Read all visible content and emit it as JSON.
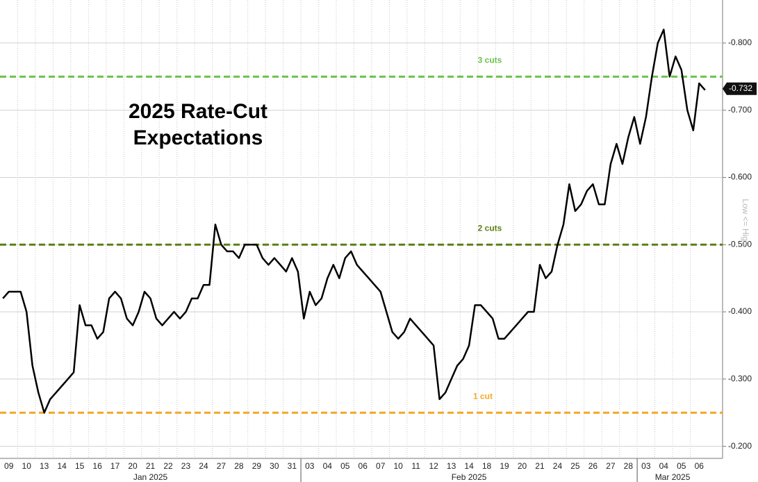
{
  "chart_data": {
    "type": "line",
    "title": "2025 Rate-Cut Expectations",
    "y_axis_label": "Low <= High",
    "y_inverted": true,
    "ylim": [
      -0.182,
      -0.864
    ],
    "yticks": [
      {
        "value": -0.8,
        "label": "-0.800"
      },
      {
        "value": -0.7,
        "label": "-0.700"
      },
      {
        "value": -0.6,
        "label": "-0.600"
      },
      {
        "value": -0.5,
        "label": "-0.500"
      },
      {
        "value": -0.4,
        "label": "-0.400"
      },
      {
        "value": -0.3,
        "label": "-0.300"
      },
      {
        "value": -0.2,
        "label": "-0.200"
      }
    ],
    "grid": true,
    "color": "#000000",
    "months": [
      "Jan 2025",
      "Feb 2025",
      "Mar 2025"
    ],
    "categories": [
      null,
      "09",
      null,
      null,
      "10",
      null,
      null,
      "13",
      null,
      null,
      "14",
      null,
      null,
      "15",
      null,
      null,
      "16",
      null,
      null,
      "17",
      null,
      null,
      "20",
      null,
      null,
      "21",
      null,
      null,
      "22",
      null,
      null,
      "23",
      null,
      null,
      "24",
      null,
      null,
      "27",
      null,
      null,
      "28",
      null,
      null,
      "29",
      null,
      null,
      "30",
      null,
      null,
      "31",
      null,
      null,
      "03",
      null,
      null,
      "04",
      null,
      null,
      "05",
      null,
      null,
      "06",
      null,
      null,
      "07",
      null,
      null,
      "10",
      null,
      null,
      "11",
      null,
      null,
      "12",
      null,
      null,
      "13",
      null,
      null,
      "14",
      null,
      null,
      "18",
      null,
      null,
      "19",
      null,
      null,
      "20",
      null,
      null,
      "21",
      null,
      null,
      "24",
      null,
      null,
      "25",
      null,
      null,
      "26",
      null,
      null,
      "27",
      null,
      null,
      "28",
      null,
      null,
      "03",
      null,
      null,
      "04",
      null,
      null,
      "05",
      null,
      null,
      "06",
      null
    ],
    "values": [
      -0.42,
      -0.43,
      -0.43,
      -0.43,
      -0.4,
      -0.32,
      -0.28,
      -0.25,
      -0.27,
      -0.28,
      -0.29,
      -0.3,
      -0.31,
      -0.41,
      -0.38,
      -0.38,
      -0.36,
      -0.37,
      -0.42,
      -0.43,
      -0.42,
      -0.39,
      -0.38,
      -0.4,
      -0.43,
      -0.42,
      -0.39,
      -0.38,
      -0.39,
      -0.4,
      -0.39,
      -0.4,
      -0.42,
      -0.42,
      -0.44,
      -0.44,
      -0.53,
      -0.5,
      -0.49,
      -0.49,
      -0.48,
      -0.5,
      -0.5,
      -0.5,
      -0.48,
      -0.47,
      -0.48,
      -0.47,
      -0.46,
      -0.48,
      -0.46,
      -0.39,
      -0.43,
      -0.41,
      -0.42,
      -0.45,
      -0.47,
      -0.45,
      -0.48,
      -0.49,
      -0.47,
      -0.46,
      -0.45,
      -0.44,
      -0.43,
      -0.4,
      -0.37,
      -0.36,
      -0.37,
      -0.39,
      -0.38,
      -0.37,
      -0.36,
      -0.35,
      -0.27,
      -0.28,
      -0.3,
      -0.32,
      -0.33,
      -0.35,
      -0.41,
      -0.41,
      -0.4,
      -0.39,
      -0.36,
      -0.36,
      -0.37,
      -0.38,
      -0.39,
      -0.4,
      -0.4,
      -0.47,
      -0.45,
      -0.46,
      -0.5,
      -0.53,
      -0.59,
      -0.55,
      -0.56,
      -0.58,
      -0.59,
      -0.56,
      -0.56,
      -0.62,
      -0.65,
      -0.62,
      -0.66,
      -0.69,
      -0.65,
      -0.69,
      -0.75,
      -0.8,
      -0.82,
      -0.75,
      -0.78,
      -0.76,
      -0.7,
      -0.67,
      -0.74,
      -0.73
    ],
    "last_value": {
      "value": -0.732,
      "label": "-0.732"
    },
    "reference_lines": [
      {
        "value": -0.75,
        "label": "3 cuts",
        "color": "#6cc24a"
      },
      {
        "value": -0.5,
        "label": "2 cuts",
        "color": "#5b7f14"
      },
      {
        "value": -0.25,
        "label": "1 cut",
        "color": "#f5a623"
      }
    ]
  }
}
